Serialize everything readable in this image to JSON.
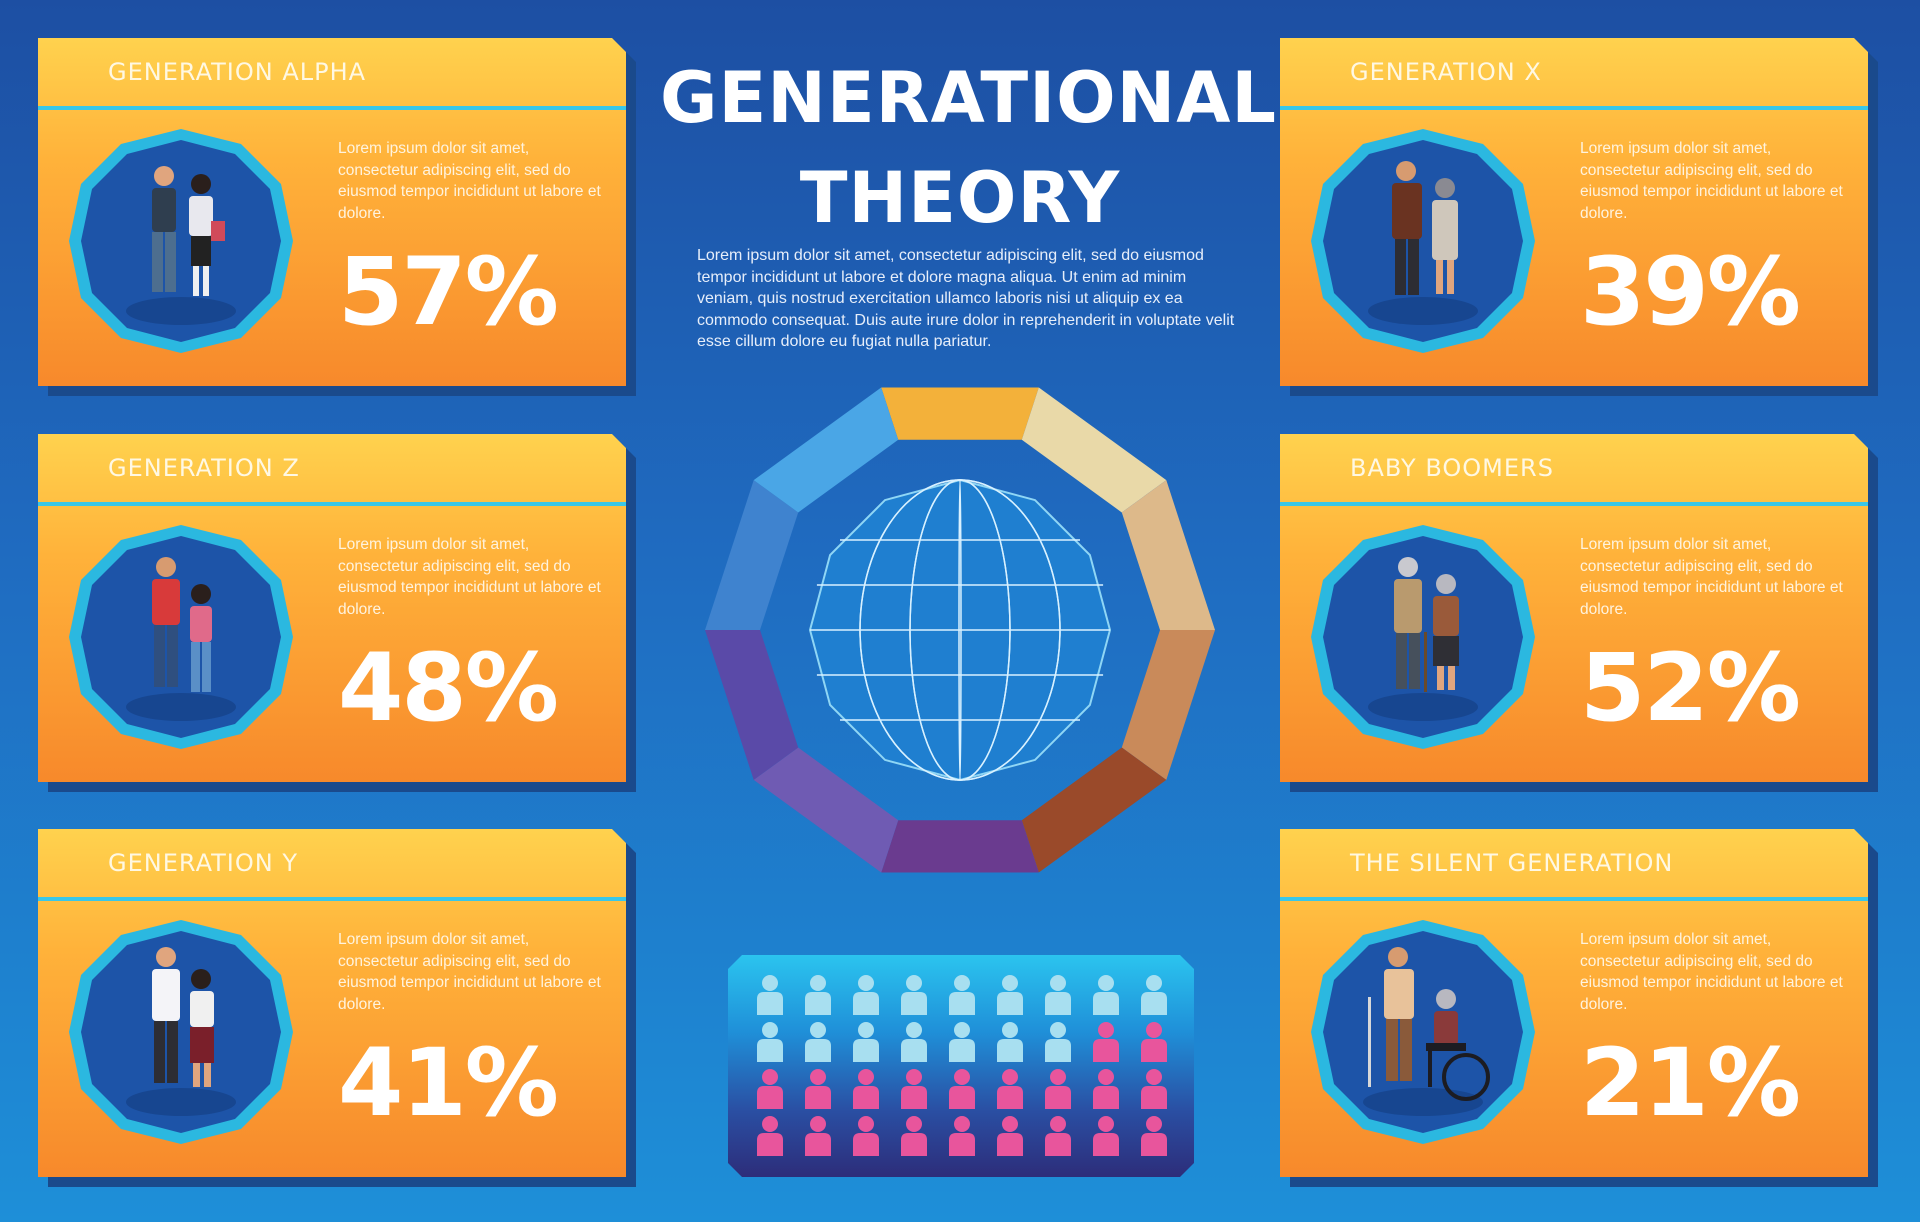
{
  "title_line1": "GENERATIONAL",
  "title_line2": "THEORY",
  "intro": "Lorem ipsum dolor sit amet, consectetur adipiscing elit, sed do eiusmod tempor incididunt ut labore et dolore magna aliqua. Ut enim ad minim veniam, quis nostrud exercitation ullamco laboris nisi ut aliquip ex ea commodo consequat. Duis aute irure dolor in reprehenderit in voluptate velit esse cillum dolore eu fugiat nulla pariatur.",
  "cards": [
    {
      "title": "GENERATION ALPHA",
      "desc": "Lorem ipsum dolor sit amet, consectetur adipiscing elit, sed do eiusmod tempor incididunt ut labore et dolore.",
      "percent": "57%"
    },
    {
      "title": "GENERATION Z",
      "desc": "Lorem ipsum dolor sit amet, consectetur adipiscing elit, sed do eiusmod tempor incididunt ut labore et dolore.",
      "percent": "48%"
    },
    {
      "title": "GENERATION Y",
      "desc": "Lorem ipsum dolor sit amet, consectetur adipiscing elit, sed do eiusmod tempor incididunt ut labore et dolore.",
      "percent": "41%"
    },
    {
      "title": "GENERATION X",
      "desc": "Lorem ipsum dolor sit amet, consectetur adipiscing elit, sed do eiusmod tempor incididunt ut labore et dolore.",
      "percent": "39%"
    },
    {
      "title": "BABY BOOMERS",
      "desc": "Lorem ipsum dolor sit amet, consectetur adipiscing elit, sed do eiusmod tempor incididunt ut labore et dolore.",
      "percent": "52%"
    },
    {
      "title": "THE SILENT GENERATION",
      "desc": "Lorem ipsum dolor sit amet, consectetur adipiscing elit, sed do eiusmod tempor incididunt ut labore et dolore.",
      "percent": "21%"
    }
  ],
  "colors": {
    "card_top": "#ffd24e",
    "card_bottom": "#f7892b",
    "accent_cyan": "#39c7e8",
    "person_light": "#a8dff0",
    "person_pink": "#e8559c"
  },
  "ring_segment_colors": [
    "#f3b13a",
    "#e9d9a8",
    "#ddb98a",
    "#c98a5a",
    "#9a4a2a",
    "#6a3b8f",
    "#6f5bb3",
    "#5a4aa8",
    "#3f83cf",
    "#4aa6e6"
  ],
  "people_grid": {
    "columns": 9,
    "rows": [
      [
        "light",
        "light",
        "light",
        "light",
        "light",
        "light",
        "light",
        "light",
        "light"
      ],
      [
        "light",
        "light",
        "light",
        "light",
        "light",
        "light",
        "light",
        "pink",
        "pink"
      ],
      [
        "pink",
        "pink",
        "pink",
        "pink",
        "pink",
        "pink",
        "pink",
        "pink",
        "pink"
      ],
      [
        "pink",
        "pink",
        "pink",
        "pink",
        "pink",
        "pink",
        "pink",
        "pink",
        "pink"
      ]
    ]
  }
}
